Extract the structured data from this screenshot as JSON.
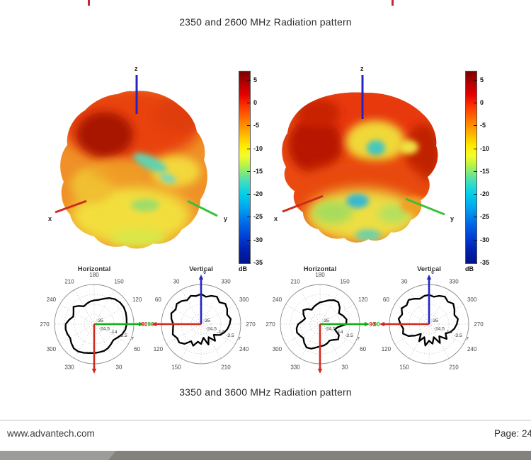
{
  "page": {
    "caption_top": "2350 and 2600 MHz Radiation pattern",
    "caption_bottom": "3350 and 3600 MHz Radiation pattern"
  },
  "footer": {
    "website": "www.advantech.com",
    "page_label": "Page: 24"
  },
  "decor": {
    "top_cutoff_text_color": "#c62828",
    "bottom_bar_light": "#9c9c9a",
    "bottom_bar_dark": "#83827d"
  },
  "axes3d": {
    "x": "x",
    "y": "y",
    "z": "z"
  },
  "colorbar": {
    "unit": "dB",
    "ticks": [
      5,
      0,
      -5,
      -10,
      -15,
      -20,
      -25,
      -30,
      -35
    ],
    "vmax": 7,
    "vmin": -35
  },
  "colors": {
    "axis_x_red": "#cf2a1e",
    "axis_y_green": "#3bbf3b",
    "axis_z_blue": "#2424c0",
    "polar_green": "#0eae0e",
    "polar_red": "#cf2a1e",
    "polar_blue": "#2424c8",
    "curve_black": "#000000",
    "grid_gray": "#aaaaaa"
  },
  "chart_data": [
    {
      "type": "surface3d",
      "group": "2350 and 2600 MHz Radiation pattern",
      "position": "upper-left",
      "axes": [
        "x",
        "y",
        "z"
      ],
      "colorbar": {
        "unit": "dB",
        "ticks": [
          5,
          0,
          -5,
          -10,
          -15,
          -20,
          -25,
          -30,
          -35
        ],
        "range": [
          -35,
          7
        ]
      },
      "summary": "3D far-field gain pattern, jet colormap; top hemisphere near 0 dB (red), lower lobes -5 to -15 dB (yellow/cyan)"
    },
    {
      "type": "surface3d",
      "group": "2350 and 2600 MHz Radiation pattern",
      "position": "upper-right",
      "axes": [
        "x",
        "y",
        "z"
      ],
      "colorbar": {
        "unit": "dB",
        "ticks": [
          5,
          0,
          -5,
          -10,
          -15,
          -20,
          -25,
          -30,
          -35
        ],
        "range": [
          -35,
          7
        ]
      },
      "summary": "3D far-field gain pattern, jet colormap; red dome near 0 dB over yellow-green skirt lobes around -10 dB"
    },
    {
      "type": "polar",
      "title": "Horizontal",
      "group": "radiation pattern cut 1",
      "angle_labels_cw_from_top": [
        "180",
        "150",
        "120",
        "90",
        "60",
        "30",
        "",
        "330",
        "300",
        "270",
        "240",
        "210"
      ],
      "radial_tick_labels": [
        "-35",
        "-24.5",
        "-14",
        "-3.5",
        "7"
      ],
      "radial_range_db": [
        -35,
        7
      ],
      "axes": [
        {
          "dir": "right",
          "color": "#0eae0e",
          "tip_label": "90"
        },
        {
          "dir": "down",
          "color": "#cf2a1e",
          "tip_label": ""
        }
      ],
      "angle_step_deg": 10,
      "r_frac": [
        0.6,
        0.62,
        0.68,
        0.76,
        0.82,
        0.85,
        0.86,
        0.85,
        0.83,
        0.82,
        0.8,
        0.75,
        0.68,
        0.63,
        0.66,
        0.7,
        0.72,
        0.72,
        0.73,
        0.74,
        0.77,
        0.8,
        0.8,
        0.75,
        0.7,
        0.72,
        0.73,
        0.72,
        0.64,
        0.56,
        0.6,
        0.68,
        0.6,
        0.52,
        0.55,
        0.58
      ]
    },
    {
      "type": "polar",
      "title": "Vertical",
      "group": "radiation pattern cut 1",
      "angle_labels_cw_from_top": [
        "0",
        "330",
        "300",
        "270",
        "240",
        "210",
        "",
        "150",
        "120",
        "90",
        "60",
        "30"
      ],
      "radial_tick_labels": [
        "-35",
        "-24.5",
        "-14",
        "-3.5",
        "7"
      ],
      "radial_range_db": [
        -35,
        7
      ],
      "axes": [
        {
          "dir": "up",
          "color": "#2424c8",
          "tip_label": "0"
        },
        {
          "dir": "left",
          "color": "#cf2a1e",
          "tip_label": "90"
        }
      ],
      "angle_step_deg": 10,
      "r_frac": [
        0.76,
        0.7,
        0.76,
        0.8,
        0.72,
        0.8,
        0.76,
        0.7,
        0.76,
        0.72,
        0.68,
        0.62,
        0.55,
        0.42,
        0.55,
        0.38,
        0.55,
        0.35,
        0.5,
        0.45,
        0.58,
        0.5,
        0.65,
        0.72,
        0.7,
        0.76,
        0.72,
        0.7,
        0.76,
        0.8,
        0.74,
        0.8,
        0.76,
        0.7,
        0.76,
        0.72
      ]
    },
    {
      "type": "polar",
      "title": "Horizontal",
      "group": "radiation pattern cut 2",
      "angle_labels_cw_from_top": [
        "180",
        "150",
        "120",
        "90",
        "60",
        "30",
        "",
        "330",
        "300",
        "270",
        "240",
        "210"
      ],
      "radial_tick_labels": [
        "-35",
        "-24.5",
        "-14",
        "-3.5",
        "7"
      ],
      "radial_range_db": [
        -35,
        7
      ],
      "axes": [
        {
          "dir": "right",
          "color": "#0eae0e",
          "tip_label": "90"
        },
        {
          "dir": "down",
          "color": "#cf2a1e",
          "tip_label": ""
        }
      ],
      "angle_step_deg": 10,
      "r_frac": [
        0.55,
        0.58,
        0.64,
        0.7,
        0.72,
        0.65,
        0.55,
        0.62,
        0.68,
        0.66,
        0.45,
        0.4,
        0.55,
        0.6,
        0.52,
        0.48,
        0.52,
        0.55,
        0.56,
        0.6,
        0.66,
        0.68,
        0.62,
        0.55,
        0.58,
        0.62,
        0.6,
        0.55,
        0.45,
        0.4,
        0.48,
        0.55,
        0.5,
        0.42,
        0.46,
        0.5
      ]
    },
    {
      "type": "polar",
      "title": "Vertical",
      "group": "radiation pattern cut 2",
      "angle_labels_cw_from_top": [
        "0",
        "330",
        "300",
        "270",
        "240",
        "210",
        "",
        "150",
        "120",
        "90",
        "60",
        "30"
      ],
      "radial_tick_labels": [
        "-35",
        "-24.5",
        "-14",
        "-3.5",
        "7"
      ],
      "radial_range_db": [
        -35,
        7
      ],
      "axes": [
        {
          "dir": "up",
          "color": "#2424c8",
          "tip_label": "0"
        },
        {
          "dir": "left",
          "color": "#cf2a1e",
          "tip_label": "90"
        }
      ],
      "angle_step_deg": 10,
      "r_frac": [
        0.74,
        0.7,
        0.76,
        0.8,
        0.74,
        0.8,
        0.74,
        0.68,
        0.74,
        0.7,
        0.65,
        0.58,
        0.48,
        0.58,
        0.4,
        0.55,
        0.35,
        0.5,
        0.42,
        0.55,
        0.35,
        0.5,
        0.32,
        0.45,
        0.6,
        0.7,
        0.66,
        0.72,
        0.78,
        0.72,
        0.8,
        0.74,
        0.8,
        0.74,
        0.68,
        0.72
      ]
    }
  ]
}
